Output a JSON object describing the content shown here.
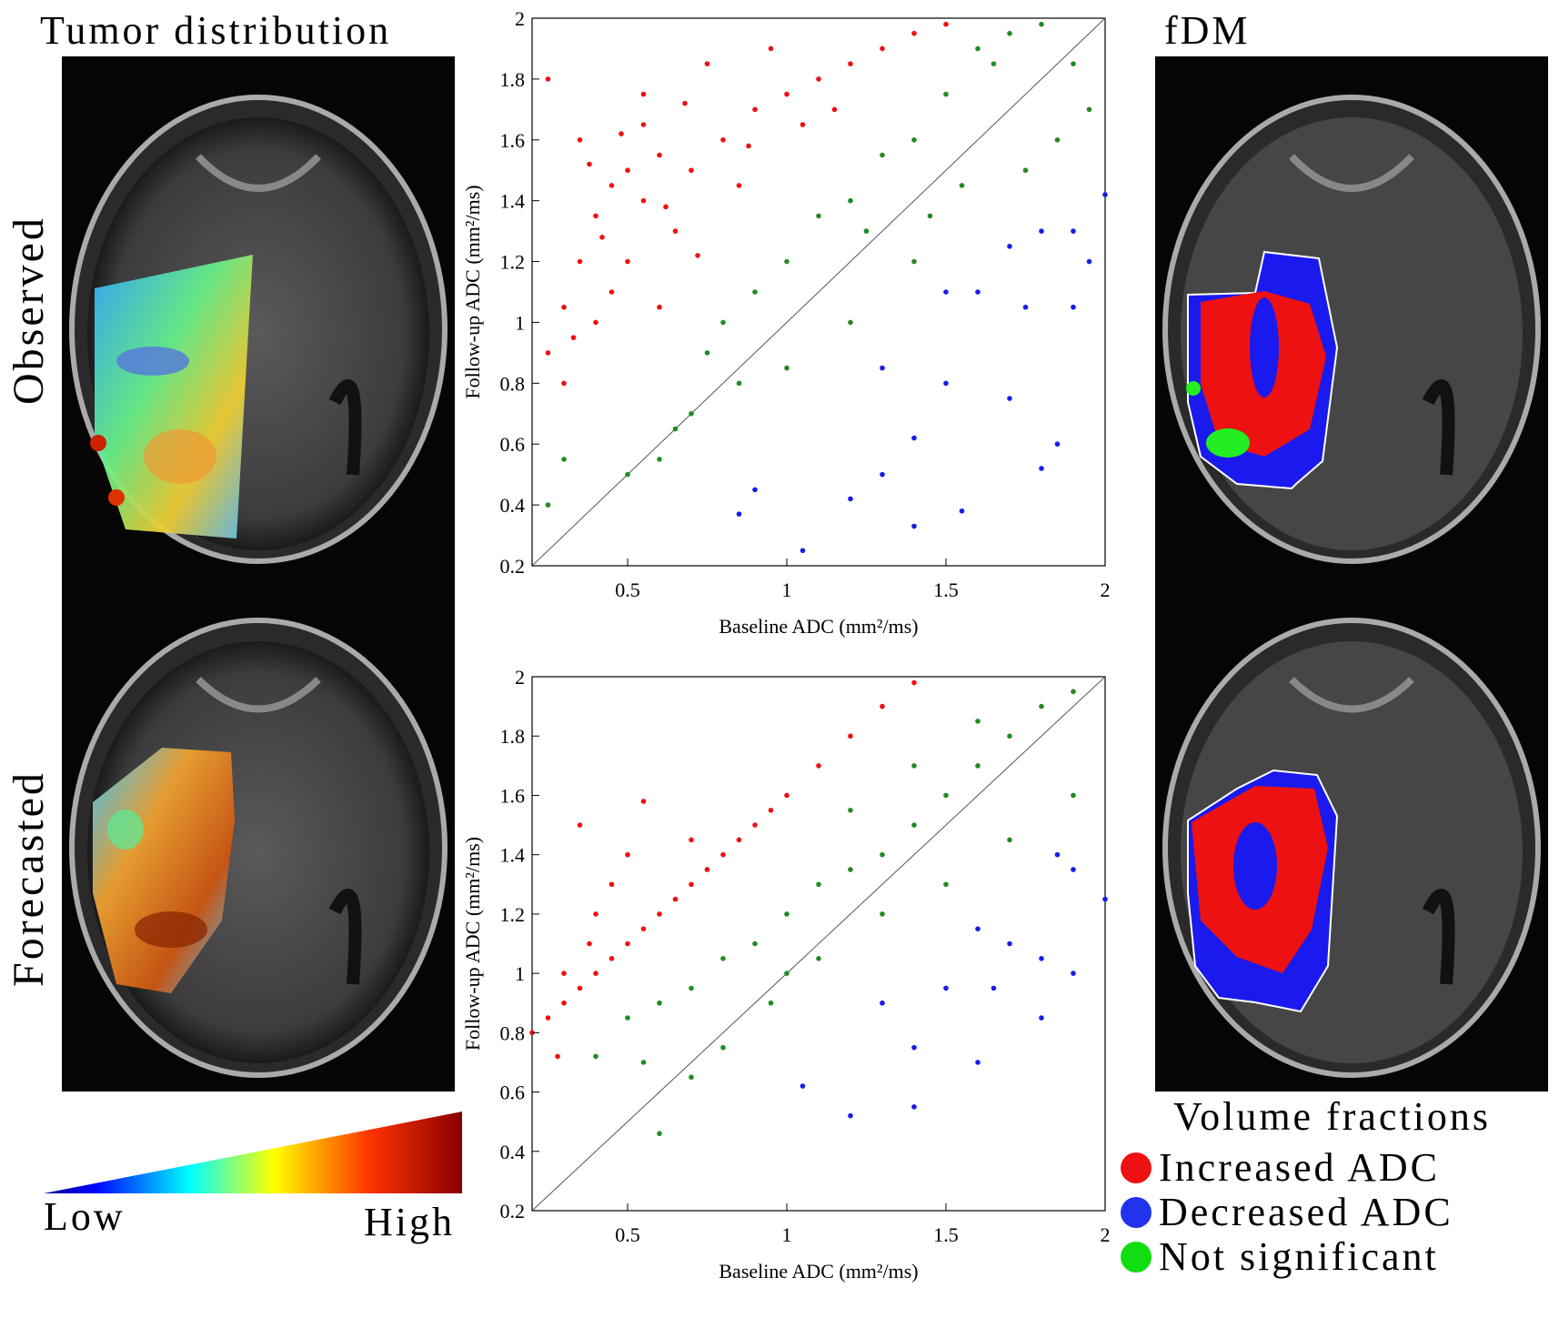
{
  "left_column": {
    "title": "Tumor distribution",
    "row_labels": [
      "Observed",
      "Forecasted"
    ],
    "colorbar": {
      "low_label": "Low",
      "high_label": "High"
    }
  },
  "right_column": {
    "title": "fDM",
    "legend_title": "Volume fractions",
    "legend": [
      {
        "label": "Increased ADC",
        "color": "#ee1111"
      },
      {
        "label": "Decreased ADC",
        "color": "#2233ee"
      },
      {
        "label": "Not significant",
        "color": "#11dd11"
      }
    ]
  },
  "chart_data": [
    {
      "type": "scatter",
      "xlabel": "Baseline ADC (mm²/ms)",
      "ylabel": "Follow-up ADC (mm²/ms)",
      "xlim": [
        0.2,
        2
      ],
      "ylim": [
        0.2,
        2
      ],
      "xticks": [
        "0.5",
        "1",
        "1.5",
        "2"
      ],
      "yticks": [
        "0.2",
        "0.4",
        "0.6",
        "0.8",
        "1",
        "1.2",
        "1.4",
        "1.6",
        "1.8",
        "2"
      ],
      "identity_line": true,
      "series": [
        {
          "color": "#ee1111",
          "points": [
            [
              0.45,
              1.45
            ],
            [
              0.5,
              1.5
            ],
            [
              0.55,
              1.4
            ],
            [
              0.4,
              1.35
            ],
            [
              0.6,
              1.55
            ],
            [
              0.35,
              1.2
            ],
            [
              0.3,
              1.05
            ],
            [
              0.5,
              1.2
            ],
            [
              0.45,
              1.1
            ],
            [
              0.65,
              1.3
            ],
            [
              0.7,
              1.5
            ],
            [
              0.8,
              1.6
            ],
            [
              0.9,
              1.7
            ],
            [
              1.0,
              1.75
            ],
            [
              1.1,
              1.8
            ],
            [
              1.2,
              1.85
            ],
            [
              1.3,
              1.9
            ],
            [
              1.4,
              1.95
            ],
            [
              0.25,
              1.8
            ],
            [
              0.35,
              1.6
            ],
            [
              0.55,
              1.75
            ],
            [
              0.75,
              1.85
            ],
            [
              0.95,
              1.9
            ],
            [
              1.05,
              1.65
            ],
            [
              0.85,
              1.45
            ],
            [
              0.6,
              1.05
            ],
            [
              0.25,
              0.9
            ],
            [
              0.3,
              0.8
            ],
            [
              0.4,
              1.0
            ],
            [
              0.55,
              1.65
            ],
            [
              1.5,
              1.98
            ],
            [
              0.42,
              1.28
            ],
            [
              0.38,
              1.52
            ],
            [
              0.62,
              1.38
            ],
            [
              0.72,
              1.22
            ],
            [
              0.33,
              0.95
            ],
            [
              0.48,
              1.62
            ],
            [
              0.68,
              1.72
            ],
            [
              0.88,
              1.58
            ],
            [
              1.15,
              1.7
            ]
          ]
        },
        {
          "color": "#228b22",
          "points": [
            [
              1.6,
              1.9
            ],
            [
              1.7,
              1.95
            ],
            [
              1.8,
              1.98
            ],
            [
              1.65,
              1.85
            ],
            [
              1.5,
              1.75
            ],
            [
              1.4,
              1.6
            ],
            [
              1.3,
              1.55
            ],
            [
              1.2,
              1.4
            ],
            [
              1.1,
              1.35
            ],
            [
              1.0,
              1.2
            ],
            [
              0.9,
              1.1
            ],
            [
              0.8,
              1.0
            ],
            [
              0.75,
              0.9
            ],
            [
              0.7,
              0.7
            ],
            [
              0.6,
              0.55
            ],
            [
              0.5,
              0.5
            ],
            [
              0.3,
              0.55
            ],
            [
              0.25,
              0.4
            ],
            [
              1.9,
              1.85
            ],
            [
              1.95,
              1.7
            ],
            [
              1.85,
              1.6
            ],
            [
              1.75,
              1.5
            ],
            [
              1.4,
              1.2
            ],
            [
              1.2,
              1.0
            ],
            [
              1.0,
              0.85
            ],
            [
              0.85,
              0.8
            ],
            [
              1.55,
              1.45
            ],
            [
              1.45,
              1.35
            ],
            [
              0.65,
              0.65
            ],
            [
              1.25,
              1.3
            ]
          ]
        },
        {
          "color": "#1a1aee",
          "points": [
            [
              1.8,
              1.3
            ],
            [
              1.7,
              1.25
            ],
            [
              1.9,
              1.3
            ],
            [
              1.6,
              1.1
            ],
            [
              1.75,
              1.05
            ],
            [
              1.9,
              1.05
            ],
            [
              1.5,
              1.1
            ],
            [
              1.3,
              0.85
            ],
            [
              1.5,
              0.8
            ],
            [
              1.7,
              0.75
            ],
            [
              1.85,
              0.6
            ],
            [
              0.85,
              0.37
            ],
            [
              0.9,
              0.45
            ],
            [
              1.05,
              0.25
            ],
            [
              1.2,
              0.42
            ],
            [
              1.3,
              0.5
            ],
            [
              1.4,
              0.33
            ],
            [
              1.55,
              0.38
            ],
            [
              1.8,
              0.52
            ],
            [
              2.0,
              1.42
            ],
            [
              1.4,
              0.62
            ],
            [
              1.95,
              1.2
            ]
          ]
        }
      ]
    },
    {
      "type": "scatter",
      "xlabel": "Baseline ADC (mm²/ms)",
      "ylabel": "Follow-up ADC (mm²/ms)",
      "xlim": [
        0.2,
        2
      ],
      "ylim": [
        0.2,
        2
      ],
      "xticks": [
        "0.5",
        "1",
        "1.5",
        "2"
      ],
      "yticks": [
        "0.2",
        "0.4",
        "0.6",
        "0.8",
        "1",
        "1.2",
        "1.4",
        "1.6",
        "1.8",
        "2"
      ],
      "identity_line": true,
      "series": [
        {
          "color": "#ee1111",
          "points": [
            [
              0.3,
              0.9
            ],
            [
              0.35,
              0.95
            ],
            [
              0.4,
              1.0
            ],
            [
              0.45,
              1.05
            ],
            [
              0.5,
              1.1
            ],
            [
              0.55,
              1.15
            ],
            [
              0.6,
              1.2
            ],
            [
              0.65,
              1.25
            ],
            [
              0.7,
              1.3
            ],
            [
              0.75,
              1.35
            ],
            [
              0.8,
              1.4
            ],
            [
              0.85,
              1.45
            ],
            [
              0.9,
              1.5
            ],
            [
              0.95,
              1.55
            ],
            [
              1.0,
              1.6
            ],
            [
              1.1,
              1.7
            ],
            [
              1.2,
              1.8
            ],
            [
              1.3,
              1.9
            ],
            [
              1.4,
              1.98
            ],
            [
              0.25,
              0.85
            ],
            [
              0.3,
              1.0
            ],
            [
              0.4,
              1.2
            ],
            [
              0.45,
              1.3
            ],
            [
              0.5,
              1.4
            ],
            [
              0.35,
              1.5
            ],
            [
              0.55,
              1.58
            ],
            [
              0.7,
              1.45
            ],
            [
              0.2,
              0.8
            ],
            [
              0.28,
              0.72
            ],
            [
              0.38,
              1.1
            ]
          ]
        },
        {
          "color": "#228b22",
          "points": [
            [
              0.5,
              0.85
            ],
            [
              0.6,
              0.9
            ],
            [
              0.7,
              0.95
            ],
            [
              0.8,
              1.05
            ],
            [
              0.9,
              1.1
            ],
            [
              1.0,
              1.2
            ],
            [
              1.1,
              1.3
            ],
            [
              1.2,
              1.35
            ],
            [
              1.3,
              1.4
            ],
            [
              1.4,
              1.5
            ],
            [
              1.5,
              1.6
            ],
            [
              1.6,
              1.7
            ],
            [
              1.7,
              1.8
            ],
            [
              1.8,
              1.9
            ],
            [
              1.9,
              1.95
            ],
            [
              1.0,
              1.0
            ],
            [
              1.1,
              1.05
            ],
            [
              1.3,
              1.2
            ],
            [
              1.5,
              1.3
            ],
            [
              1.7,
              1.45
            ],
            [
              1.9,
              1.6
            ],
            [
              0.6,
              0.46
            ],
            [
              0.7,
              0.65
            ],
            [
              0.8,
              0.75
            ],
            [
              0.55,
              0.7
            ],
            [
              0.4,
              0.72
            ],
            [
              1.2,
              1.55
            ],
            [
              1.4,
              1.7
            ],
            [
              1.6,
              1.85
            ],
            [
              0.95,
              0.9
            ]
          ]
        },
        {
          "color": "#1a1aee",
          "points": [
            [
              1.6,
              1.15
            ],
            [
              1.7,
              1.1
            ],
            [
              1.8,
              1.05
            ],
            [
              1.9,
              1.0
            ],
            [
              1.65,
              0.95
            ],
            [
              1.8,
              0.85
            ],
            [
              1.5,
              0.95
            ],
            [
              1.3,
              0.9
            ],
            [
              1.4,
              0.75
            ],
            [
              1.6,
              0.7
            ],
            [
              1.05,
              0.62
            ],
            [
              1.2,
              0.52
            ],
            [
              1.4,
              0.55
            ],
            [
              1.9,
              1.35
            ],
            [
              2.0,
              1.25
            ],
            [
              1.85,
              1.4
            ]
          ]
        }
      ]
    }
  ]
}
